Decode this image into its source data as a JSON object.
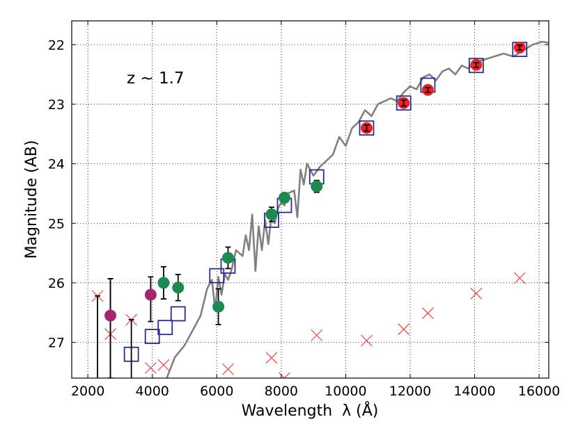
{
  "chart_data": {
    "type": "scatter",
    "xlabel": "Wavelength  λ (Å)",
    "ylabel": "Magnitude (AB)",
    "annotation": "z ~ 1.7",
    "xlim": [
      1500,
      16300
    ],
    "ylim": [
      27.6,
      21.6
    ],
    "y_inverted": true,
    "grid": true,
    "grid_style": "dotted",
    "xticks": [
      2000,
      4000,
      6000,
      8000,
      10000,
      12000,
      14000,
      16000
    ],
    "yticks": [
      22,
      23,
      24,
      25,
      26,
      27
    ],
    "colors": {
      "model": "#808080",
      "red_points": "#ee2222",
      "green_points": "#1a8a50",
      "magenta_points": "#a8246e",
      "squares": "#2b2b8c",
      "crosses": "#f05050",
      "errorbars": "#000000"
    },
    "series": [
      {
        "kind": "model_spectrum",
        "style": "line",
        "x": [
          4450,
          4700,
          5000,
          5300,
          5500,
          5700,
          5850,
          5950,
          6050,
          6150,
          6250,
          6350,
          6450,
          6600,
          6800,
          6900,
          7000,
          7100,
          7200,
          7300,
          7400,
          7500,
          7600,
          7700,
          7800,
          7900,
          8000,
          8100,
          8200,
          8400,
          8500,
          8600,
          8700,
          8800,
          9000,
          9200,
          9400,
          9600,
          9800,
          10000,
          10200,
          10400,
          10600,
          10800,
          11000,
          11200,
          11400,
          11600,
          11800,
          12000,
          12200,
          12400,
          12600,
          12800,
          13000,
          13200,
          13400,
          13600,
          13800,
          14000,
          14300,
          14600,
          14900,
          15200,
          15500,
          15800,
          16100,
          16300
        ],
        "y": [
          27.6,
          27.25,
          27.05,
          26.75,
          26.55,
          26.1,
          25.95,
          26.45,
          25.9,
          26.2,
          25.85,
          25.95,
          25.8,
          25.45,
          25.55,
          25.2,
          25.45,
          24.85,
          25.8,
          25.05,
          25.45,
          24.95,
          25.35,
          24.85,
          25.0,
          24.75,
          24.65,
          24.7,
          24.5,
          24.45,
          24.9,
          24.1,
          24.35,
          24.0,
          24.2,
          24.05,
          23.95,
          23.85,
          23.55,
          23.7,
          23.4,
          23.3,
          23.1,
          23.2,
          23.0,
          22.95,
          22.9,
          22.95,
          22.8,
          22.7,
          22.75,
          22.55,
          22.5,
          22.6,
          22.45,
          22.4,
          22.5,
          22.35,
          22.4,
          22.3,
          22.25,
          22.2,
          22.15,
          22.2,
          22.1,
          22.0,
          21.95,
          21.97
        ]
      },
      {
        "kind": "photometry_red",
        "style": "circle",
        "x": [
          10650,
          11800,
          12550,
          14050,
          15400
        ],
        "y": [
          23.4,
          22.98,
          22.76,
          22.34,
          22.05
        ],
        "yerr": [
          0.05,
          0.05,
          0.04,
          0.04,
          0.04
        ]
      },
      {
        "kind": "photometry_green",
        "style": "circle",
        "x": [
          4350,
          4800,
          6050,
          6350,
          7700,
          8100,
          9100
        ],
        "y": [
          26.0,
          26.08,
          26.4,
          25.58,
          24.85,
          24.57,
          24.38
        ],
        "yerr": [
          0.27,
          0.22,
          0.3,
          0.18,
          0.12,
          0.08,
          0.1
        ]
      },
      {
        "kind": "photometry_magenta",
        "style": "circle",
        "x": [
          2700,
          3950
        ],
        "y": [
          26.55,
          26.2
        ],
        "yerr_low": [
          1.05,
          0.45
        ],
        "yerr_high": [
          0.62,
          0.3
        ]
      },
      {
        "kind": "model_bands",
        "style": "square",
        "x": [
          3350,
          4000,
          4400,
          4800,
          6000,
          6350,
          7700,
          8100,
          9100,
          10650,
          11800,
          12550,
          14050,
          15400
        ],
        "y": [
          27.2,
          26.9,
          26.75,
          26.52,
          25.88,
          25.72,
          24.95,
          24.7,
          24.22,
          23.4,
          22.98,
          22.68,
          22.35,
          22.08
        ]
      },
      {
        "kind": "upper_limits",
        "style": "cross",
        "x": [
          2300,
          2700,
          3350,
          3950,
          4350,
          6350,
          7700,
          8100,
          9100,
          10650,
          11800,
          12550,
          14050,
          15400
        ],
        "y": [
          26.22,
          26.86,
          26.62,
          27.43,
          27.38,
          27.45,
          27.26,
          27.6,
          26.88,
          26.97,
          26.78,
          26.51,
          26.18,
          25.92
        ]
      },
      {
        "kind": "lower_limit_bars",
        "style": "errorbar",
        "x": [
          2300,
          2700,
          3350
        ],
        "y_top": [
          26.22,
          25.93,
          26.62
        ]
      }
    ]
  }
}
